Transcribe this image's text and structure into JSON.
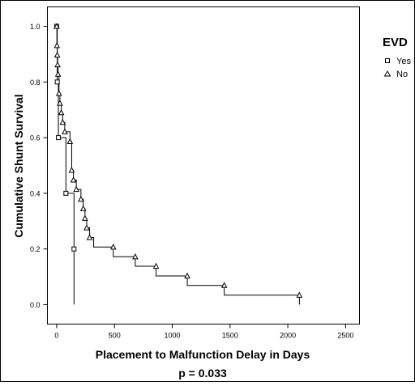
{
  "chart_data": {
    "type": "line",
    "subtype": "kaplan-meier step",
    "title": "",
    "xlabel": "Placement to Malfunction Delay in Days",
    "ylabel": "Cumulative Shunt Survival",
    "footnote": "p = 0.033",
    "xlim": [
      -80,
      2620
    ],
    "ylim": [
      -0.07,
      1.07
    ],
    "xticks": [
      "0",
      "500",
      "1000",
      "1500",
      "2000",
      "2500"
    ],
    "yticks": [
      "0.0",
      "0.2",
      "0.4",
      "0.6",
      "0.8",
      "1.0"
    ],
    "grid": false,
    "legend": {
      "title": "EVD",
      "placement": "right, outside plot area"
    },
    "series": [
      {
        "name": "Yes",
        "marker": "square",
        "points": [
          [
            0,
            1.0
          ],
          [
            5,
            0.8
          ],
          [
            15,
            0.6
          ],
          [
            80,
            0.4
          ],
          [
            150,
            0.2
          ],
          [
            150,
            0.0
          ]
        ],
        "censored": [
          [
            0,
            1.0
          ],
          [
            5,
            0.8
          ],
          [
            15,
            0.6
          ],
          [
            80,
            0.4
          ],
          [
            150,
            0.2
          ]
        ]
      },
      {
        "name": "No",
        "marker": "triangle",
        "points": [
          [
            0,
            1.0
          ],
          [
            2,
            0.931
          ],
          [
            5,
            0.897
          ],
          [
            8,
            0.862
          ],
          [
            12,
            0.828
          ],
          [
            20,
            0.759
          ],
          [
            28,
            0.724
          ],
          [
            40,
            0.69
          ],
          [
            52,
            0.655
          ],
          [
            70,
            0.621
          ],
          [
            115,
            0.586
          ],
          [
            130,
            0.483
          ],
          [
            145,
            0.448
          ],
          [
            170,
            0.414
          ],
          [
            210,
            0.379
          ],
          [
            230,
            0.345
          ],
          [
            245,
            0.31
          ],
          [
            260,
            0.276
          ],
          [
            285,
            0.241
          ],
          [
            320,
            0.207
          ],
          [
            490,
            0.172
          ],
          [
            680,
            0.138
          ],
          [
            860,
            0.103
          ],
          [
            1130,
            0.069
          ],
          [
            1450,
            0.034
          ],
          [
            2100,
            0.034
          ],
          [
            2100,
            0.0
          ]
        ],
        "censored": [
          [
            0,
            1.0
          ],
          [
            2,
            0.931
          ],
          [
            5,
            0.897
          ],
          [
            8,
            0.862
          ],
          [
            12,
            0.828
          ],
          [
            20,
            0.759
          ],
          [
            28,
            0.724
          ],
          [
            40,
            0.69
          ],
          [
            52,
            0.655
          ],
          [
            70,
            0.621
          ],
          [
            115,
            0.586
          ],
          [
            130,
            0.483
          ],
          [
            145,
            0.448
          ],
          [
            170,
            0.414
          ],
          [
            210,
            0.379
          ],
          [
            230,
            0.345
          ],
          [
            245,
            0.31
          ],
          [
            260,
            0.276
          ],
          [
            285,
            0.241
          ],
          [
            490,
            0.207
          ],
          [
            680,
            0.172
          ],
          [
            860,
            0.138
          ],
          [
            1130,
            0.103
          ],
          [
            1450,
            0.069
          ],
          [
            2100,
            0.034
          ]
        ]
      }
    ]
  }
}
